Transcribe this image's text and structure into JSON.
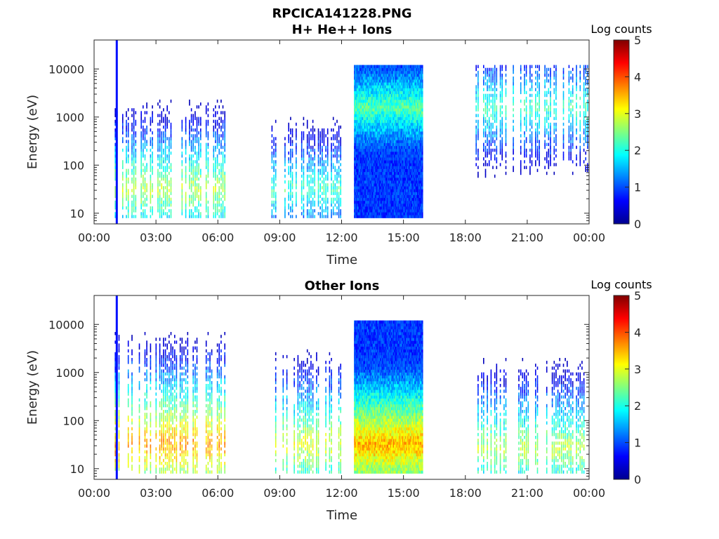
{
  "figure": {
    "title_line1": "RPCICA141228.PNG",
    "title_line2": "H+ He++ Ions"
  },
  "colors": {
    "axis": "#262626",
    "jet_stops": [
      "#00008f",
      "#0000ff",
      "#0080ff",
      "#00ffff",
      "#80ff80",
      "#ffff00",
      "#ff8000",
      "#ff0000",
      "#800000"
    ]
  },
  "chart_data": [
    {
      "type": "heatmap",
      "title": "H+ He++ Ions",
      "xlabel": "Time",
      "ylabel": "Energy (eV)",
      "yscale": "log",
      "xlim": [
        "00:00",
        "24:00"
      ],
      "ylim": [
        6,
        40000
      ],
      "xticks": [
        "00:00",
        "03:00",
        "06:00",
        "09:00",
        "12:00",
        "15:00",
        "18:00",
        "21:00",
        "00:00"
      ],
      "yticks": [
        "10",
        "100",
        "1000",
        "10000"
      ],
      "colorbar_label": "Log counts",
      "colorbar_ticks": [
        "0",
        "1",
        "2",
        "3",
        "4",
        "5"
      ],
      "clim": [
        0,
        5
      ],
      "data_segments": [
        {
          "start_hour": 1.0,
          "end_hour": 6.4,
          "band_energy_ev": 30,
          "band_log_counts": 2.8
        },
        {
          "start_hour": 8.6,
          "end_hour": 12.0,
          "band_energy_ev": 30,
          "band_log_counts": 2.2
        },
        {
          "start_hour": 12.6,
          "end_hour": 15.9,
          "band_energy_ev": 1500,
          "band_log_counts": 2.3
        },
        {
          "start_hour": 18.5,
          "end_hour": 24.0,
          "band_energy_ev": 1500,
          "band_log_counts": 2.2
        }
      ]
    },
    {
      "type": "heatmap",
      "title": "Other Ions",
      "xlabel": "Time",
      "ylabel": "Energy (eV)",
      "yscale": "log",
      "xlim": [
        "00:00",
        "24:00"
      ],
      "ylim": [
        6,
        40000
      ],
      "xticks": [
        "00:00",
        "03:00",
        "06:00",
        "09:00",
        "12:00",
        "15:00",
        "18:00",
        "21:00",
        "00:00"
      ],
      "yticks": [
        "10",
        "100",
        "1000",
        "10000"
      ],
      "colorbar_label": "Log counts",
      "colorbar_ticks": [
        "0",
        "1",
        "2",
        "3",
        "4",
        "5"
      ],
      "clim": [
        0,
        5
      ],
      "data_segments": [
        {
          "start_hour": 1.0,
          "end_hour": 6.4,
          "band_energy_ev": 30,
          "band_log_counts": 3.6
        },
        {
          "start_hour": 8.6,
          "end_hour": 12.0,
          "band_energy_ev": 30,
          "band_log_counts": 3.0
        },
        {
          "start_hour": 12.6,
          "end_hour": 15.9,
          "band_energy_ev": 30,
          "band_log_counts": 3.5
        },
        {
          "start_hour": 18.5,
          "end_hour": 24.0,
          "band_energy_ev": 25,
          "band_log_counts": 2.8
        }
      ]
    }
  ]
}
